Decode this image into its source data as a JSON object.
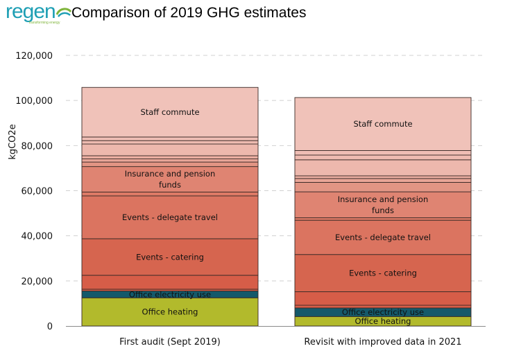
{
  "logo": {
    "text": "regen",
    "tagline": "transforming energy"
  },
  "title": "Comparison of 2019 GHG estimates",
  "chart_data": {
    "type": "bar",
    "stacked": true,
    "title": "Comparison of 2019 GHG estimates",
    "ylabel": "kgCO2e",
    "xlabel": "",
    "ylim": [
      0,
      120000
    ],
    "yticks": [
      0,
      20000,
      40000,
      60000,
      80000,
      100000,
      120000
    ],
    "ytick_labels": [
      "0",
      "20,000",
      "40,000",
      "60,000",
      "80,000",
      "100,000",
      "120,000"
    ],
    "grid": true,
    "categories": [
      "First audit (Sept 2019)",
      "Revisit with improved data in 2021"
    ],
    "bars": [
      {
        "category": "First audit (Sept 2019)",
        "segments": [
          {
            "label": "Office heating",
            "value": 12500,
            "color": "#b2ba2c"
          },
          {
            "label": "Office electricity use",
            "value": 3000,
            "color": "#14596a"
          },
          {
            "label": "",
            "value": 800,
            "color": "#d65d48"
          },
          {
            "label": "",
            "value": 6200,
            "color": "#d65d48"
          },
          {
            "label": "Events - catering",
            "value": 16200,
            "color": "#d6654f"
          },
          {
            "label": "Events - delegate travel",
            "value": 19000,
            "color": "#db7460"
          },
          {
            "label": "",
            "value": 1700,
            "color": "#dd7a66"
          },
          {
            "label": "Insurance and pension funds",
            "value": 11300,
            "color": "#df8472"
          },
          {
            "label": "",
            "value": 2000,
            "color": "#e29584"
          },
          {
            "label": "",
            "value": 1400,
            "color": "#e8a597"
          },
          {
            "label": "",
            "value": 1400,
            "color": "#ebaea1"
          },
          {
            "label": "",
            "value": 5200,
            "color": "#edb8ad"
          },
          {
            "label": "",
            "value": 1500,
            "color": "#eebbb1"
          },
          {
            "label": "",
            "value": 1600,
            "color": "#efbeb5"
          },
          {
            "label": "Staff commute",
            "value": 22000,
            "color": "#f0c2b9"
          }
        ]
      },
      {
        "category": "Revisit with improved data in 2021",
        "segments": [
          {
            "label": "Office heating",
            "value": 4200,
            "color": "#b2ba2c"
          },
          {
            "label": "Office electricity use",
            "value": 3800,
            "color": "#14596a"
          },
          {
            "label": "",
            "value": 1200,
            "color": "#d65d48"
          },
          {
            "label": "",
            "value": 6000,
            "color": "#d65d48"
          },
          {
            "label": "Events - catering",
            "value": 16500,
            "color": "#d6654f"
          },
          {
            "label": "Events - delegate travel",
            "value": 15200,
            "color": "#db7460"
          },
          {
            "label": "",
            "value": 1100,
            "color": "#dd7a66"
          },
          {
            "label": "Insurance and pension funds",
            "value": 11500,
            "color": "#df8472"
          },
          {
            "label": "",
            "value": 4200,
            "color": "#e29584"
          },
          {
            "label": "",
            "value": 1700,
            "color": "#e8a597"
          },
          {
            "label": "",
            "value": 1200,
            "color": "#ebaea1"
          },
          {
            "label": "",
            "value": 7100,
            "color": "#edb8ad"
          },
          {
            "label": "",
            "value": 2100,
            "color": "#eebbb1"
          },
          {
            "label": "",
            "value": 2000,
            "color": "#efbeb5"
          },
          {
            "label": "Staff commute",
            "value": 23500,
            "color": "#f0c2b9"
          }
        ]
      }
    ]
  }
}
